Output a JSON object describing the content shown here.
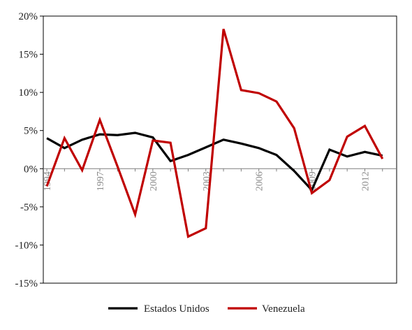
{
  "chart_data": {
    "type": "line",
    "title": "",
    "xlabel": "",
    "ylabel": "",
    "x": [
      1994,
      1995,
      1996,
      1997,
      1998,
      1999,
      2000,
      2001,
      2002,
      2003,
      2004,
      2005,
      2006,
      2007,
      2008,
      2009,
      2010,
      2011,
      2012,
      2013
    ],
    "xticks": [
      1994,
      1997,
      2000,
      2003,
      2006,
      2009,
      2012
    ],
    "xtick_labels": [
      "1994",
      "1997",
      "2000",
      "2003",
      "2006",
      "2009",
      "2012"
    ],
    "xlim": [
      1993.8,
      2013.8
    ],
    "ylim": [
      -15,
      20
    ],
    "yticks": [
      -15,
      -10,
      -5,
      0,
      5,
      10,
      15,
      20
    ],
    "ytick_labels": [
      "-15%",
      "-10%",
      "-5%",
      "0%",
      "5%",
      "10%",
      "15%",
      "20%"
    ],
    "grid": false,
    "legend_position": "bottom",
    "series": [
      {
        "name": "Estados Unidos",
        "color": "#000000",
        "values": [
          4.0,
          2.7,
          3.8,
          4.5,
          4.4,
          4.7,
          4.1,
          1.0,
          1.8,
          2.8,
          3.8,
          3.3,
          2.7,
          1.8,
          -0.3,
          -2.8,
          2.5,
          1.6,
          2.2,
          1.7
        ]
      },
      {
        "name": "Venezuela",
        "color": "#c00000",
        "values": [
          -2.3,
          4.0,
          -0.2,
          6.4,
          0.3,
          -6.0,
          3.7,
          3.4,
          -8.9,
          -7.8,
          18.3,
          10.3,
          9.9,
          8.8,
          5.3,
          -3.2,
          -1.5,
          4.2,
          5.6,
          1.3
        ]
      }
    ]
  }
}
